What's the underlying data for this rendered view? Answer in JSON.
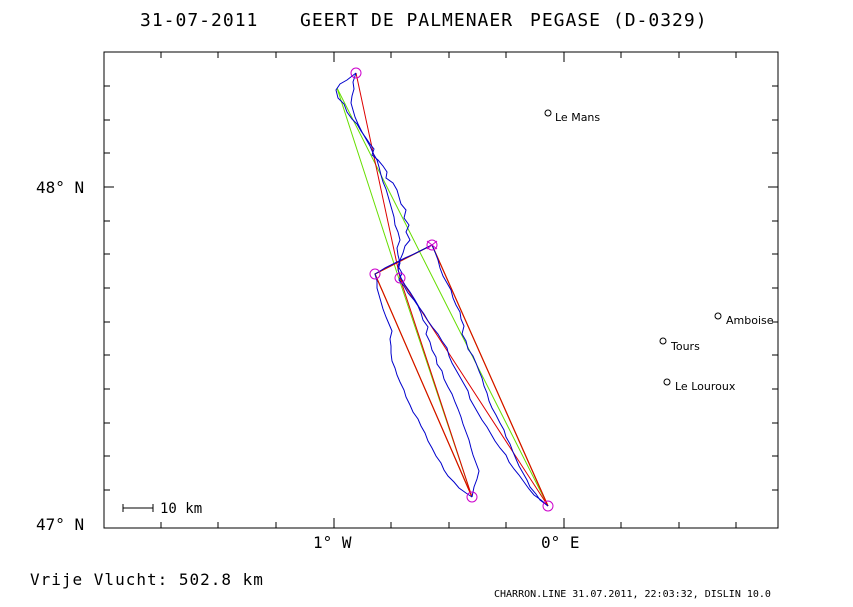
{
  "header": {
    "date": "31-07-2011",
    "pilot": "GEERT DE PALMENAER",
    "glider": "PEGASE (D-0329)"
  },
  "axes": {
    "lat_top": "",
    "lat_labels": [
      "48° N",
      "47° N"
    ],
    "lon_labels": [
      "1° W",
      "0° E"
    ]
  },
  "cities": [
    {
      "name": "Le Mans"
    },
    {
      "name": "Amboise"
    },
    {
      "name": "Tours"
    },
    {
      "name": "Le Louroux"
    }
  ],
  "scale": {
    "label": "10 km"
  },
  "footer": {
    "free_flight": "Vrije Vlucht:  502.8 km",
    "credits": "CHARRON.LINE 31.07.2011, 22:03:32, DISLIN 10.0"
  },
  "colors": {
    "track": "#0000cc",
    "green_route": "#66dd00",
    "red_route": "#dd0000",
    "orange_route": "#cc8800",
    "turnpoints": "#cc00cc"
  }
}
